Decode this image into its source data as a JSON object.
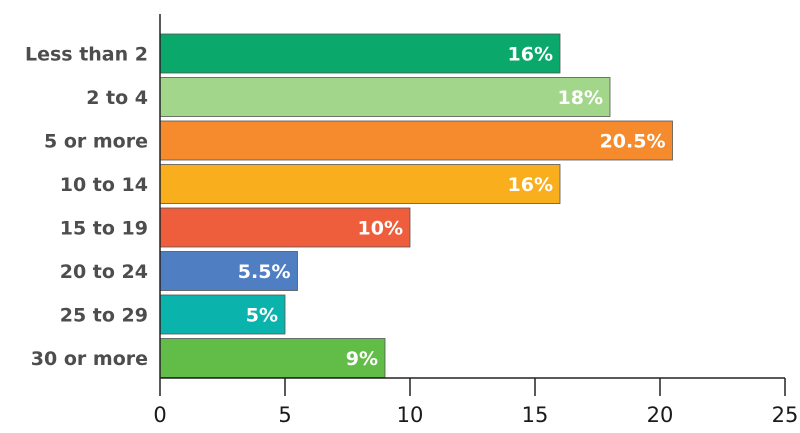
{
  "chart_data": {
    "type": "bar",
    "orientation": "horizontal",
    "title": "",
    "xlabel": "",
    "ylabel": "",
    "categories": [
      "Less than 2",
      "2 to 4",
      "5 or more",
      "10 to 14",
      "15 to 19",
      "20 to 24",
      "25 to 29",
      "30 or more"
    ],
    "values": [
      16,
      18,
      20.5,
      16,
      10,
      5.5,
      5,
      9
    ],
    "data_labels": [
      "16%",
      "18%",
      "20.5%",
      "16%",
      "10%",
      "5.5%",
      "5%",
      "9%"
    ],
    "colors": [
      "#0aa86a",
      "#a2d68a",
      "#f58b2c",
      "#f9ae1e",
      "#ef5e3c",
      "#4f7fc2",
      "#0bb3ad",
      "#61bd48"
    ],
    "xlim": [
      0,
      25
    ],
    "xticks": [
      0,
      5,
      10,
      15,
      20,
      25
    ],
    "xtick_labels": [
      "0",
      "5",
      "10",
      "15",
      "20",
      "25"
    ],
    "grid": false,
    "legend": "none"
  }
}
